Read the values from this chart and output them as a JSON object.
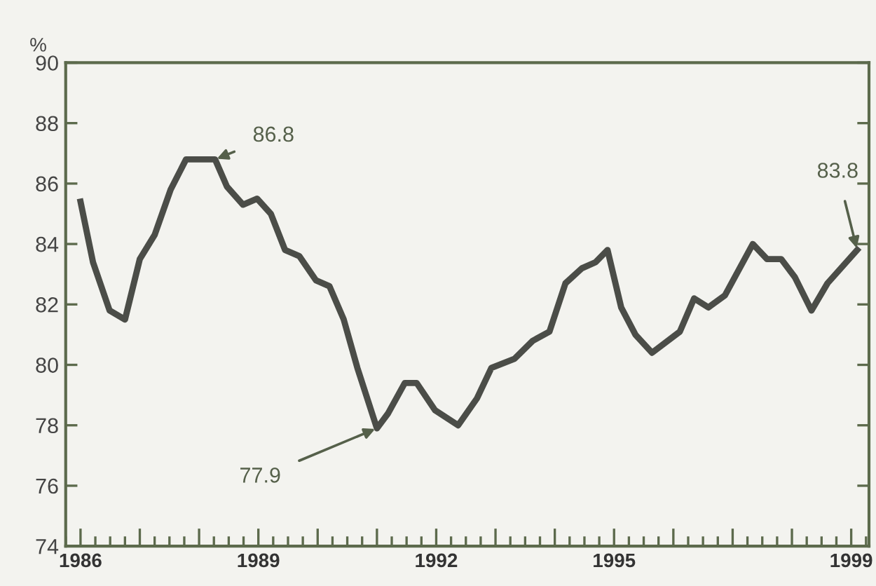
{
  "chart_data": {
    "type": "line",
    "ylabel": "%",
    "x": [
      1986.0,
      1986.21,
      1986.49,
      1986.75,
      1987.0,
      1987.25,
      1987.52,
      1987.78,
      1988.27,
      1988.47,
      1988.74,
      1988.98,
      1989.21,
      1989.45,
      1989.69,
      1989.97,
      1990.2,
      1990.44,
      1990.67,
      1991.0,
      1991.19,
      1991.47,
      1991.67,
      1991.98,
      1992.37,
      1992.69,
      1992.93,
      1993.32,
      1993.63,
      1993.91,
      1994.18,
      1994.46,
      1994.69,
      1994.89,
      1995.12,
      1995.36,
      1995.64,
      1996.11,
      1996.35,
      1996.59,
      1996.87,
      1997.34,
      1997.58,
      1997.82,
      1998.05,
      1998.33,
      1998.6,
      1999.1
    ],
    "series": [
      {
        "color": "#4b4d48",
        "values": [
          85.4,
          83.4,
          81.8,
          81.5,
          83.5,
          84.3,
          85.8,
          86.8,
          86.8,
          85.9,
          85.3,
          85.5,
          85.0,
          83.8,
          83.6,
          82.8,
          82.6,
          81.5,
          79.9,
          77.9,
          78.4,
          79.4,
          79.4,
          78.5,
          78.0,
          78.9,
          79.9,
          80.2,
          80.8,
          81.1,
          82.7,
          83.2,
          83.4,
          83.8,
          81.9,
          81.0,
          80.4,
          81.1,
          82.2,
          81.9,
          82.3,
          84.0,
          83.5,
          83.5,
          82.9,
          81.8,
          82.7,
          83.8
        ]
      }
    ],
    "xlim": [
      1985.75,
      1999.3
    ],
    "xticks": [
      1986,
      {
        "value": 1987,
        "label": null
      },
      {
        "value": 1988,
        "label": null
      },
      1989,
      {
        "value": 1990,
        "label": null
      },
      {
        "value": 1991,
        "label": null
      },
      1992,
      {
        "value": 1993,
        "label": null
      },
      {
        "value": 1994,
        "label": null
      },
      1995,
      {
        "value": 1996,
        "label": null
      },
      {
        "value": 1997,
        "label": null
      },
      {
        "value": 1998,
        "label": null
      },
      1999
    ],
    "ylim": [
      74,
      90
    ],
    "yticks": [
      74,
      76,
      78,
      80,
      82,
      84,
      86,
      88,
      90
    ],
    "annotations": [
      {
        "text": "86.8",
        "x": 1988.27,
        "y": 86.8
      },
      {
        "text": "77.9",
        "x": 1991.0,
        "y": 77.9
      },
      {
        "text": "83.8",
        "x": 1999.1,
        "y": 83.8
      }
    ],
    "grid": false,
    "legend": false,
    "marker": "none",
    "line_style": "solid"
  }
}
